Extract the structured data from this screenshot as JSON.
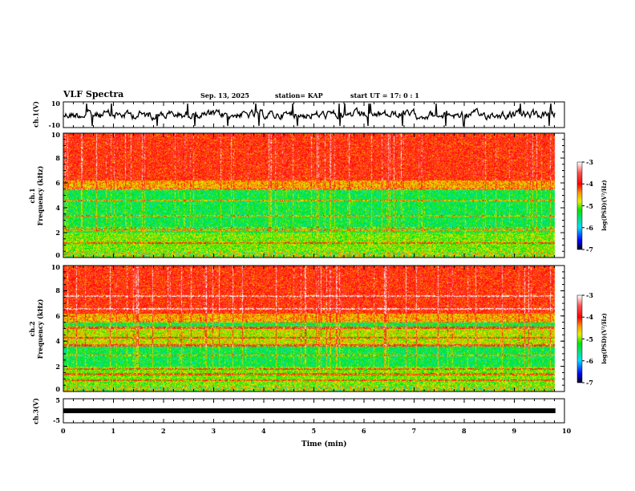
{
  "header": {
    "title": "VLF Spectra",
    "date": "Sep. 13, 2025",
    "station": "station= KAP",
    "start": "start  UT =   17: 0  : 1"
  },
  "chart_data": [
    {
      "type": "line",
      "name": "ch1-waveform",
      "ylabel": "ch.1(V)",
      "ylim": [
        -10,
        10
      ],
      "yticks": [
        "10",
        "-10"
      ],
      "xlim": [
        0,
        10
      ]
    },
    {
      "type": "heatmap",
      "name": "ch1-spectrogram",
      "ylabel": "ch.1",
      "ylabel2": "Frequency (kHz)",
      "ylim": [
        0,
        10
      ],
      "yticks": [
        "0",
        "2",
        "4",
        "6",
        "8",
        "10"
      ],
      "colorbar": {
        "label": "log(PSD)(V²/Hz)",
        "range": [
          -7,
          -3
        ],
        "ticks": [
          "-3",
          "-4",
          "-5",
          "-6",
          "-7"
        ]
      }
    },
    {
      "type": "heatmap",
      "name": "ch2-spectrogram",
      "ylabel": "ch.2",
      "ylabel2": "Frequency (kHz)",
      "ylim": [
        0,
        10
      ],
      "yticks": [
        "0",
        "2",
        "4",
        "6",
        "8",
        "10"
      ],
      "colorbar": {
        "label": "log(PSD)(V²/Hz)",
        "range": [
          -7,
          -3
        ],
        "ticks": [
          "-3",
          "-4",
          "-5",
          "-6",
          "-7"
        ]
      }
    },
    {
      "type": "line",
      "name": "ch3-waveform",
      "ylabel": "ch.3(V)",
      "ylim": [
        -5,
        5
      ],
      "yticks": [
        "5",
        "-5"
      ],
      "level": 0,
      "data_end_min": 9.82
    }
  ],
  "xaxis": {
    "label": "Time (min)",
    "ticks": [
      "0",
      "1",
      "2",
      "3",
      "4",
      "5",
      "6",
      "7",
      "8",
      "9",
      "10"
    ],
    "range": [
      0,
      10
    ]
  }
}
